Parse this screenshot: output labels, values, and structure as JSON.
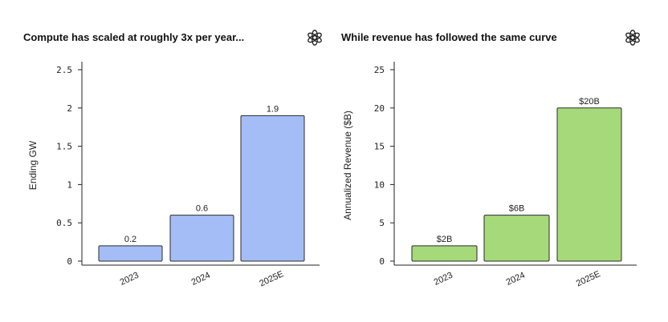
{
  "colors": {
    "compute": "#a4bdf7",
    "revenue": "#a6d97a",
    "stroke": "#2b2b2b"
  },
  "brand_icon": "openai-logo-icon",
  "chart_data": [
    {
      "type": "bar",
      "title": "Compute has scaled at roughly 3x per year...",
      "ylabel": "Ending GW",
      "xlabel": "",
      "categories": [
        "2023",
        "2024",
        "2025E"
      ],
      "values": [
        0.2,
        0.6,
        1.9
      ],
      "data_labels": [
        "0.2",
        "0.6",
        "1.9"
      ],
      "ylim": [
        0,
        2.5
      ],
      "yticks": [
        0,
        0.5,
        1,
        1.5,
        2,
        2.5
      ],
      "ytick_labels": [
        "0",
        "0.5",
        "1",
        "1.5",
        "2",
        "2.5"
      ],
      "grid": false,
      "color": "#a4bdf7"
    },
    {
      "type": "bar",
      "title": "While revenue has followed the same curve",
      "ylabel": "Annualized Revenue ($B)",
      "xlabel": "",
      "categories": [
        "2023",
        "2024",
        "2025E"
      ],
      "values": [
        2,
        6,
        20
      ],
      "data_labels": [
        "$2B",
        "$6B",
        "$20B"
      ],
      "ylim": [
        0,
        25
      ],
      "yticks": [
        0,
        5,
        10,
        15,
        20,
        25
      ],
      "ytick_labels": [
        "0",
        "5",
        "10",
        "15",
        "20",
        "25"
      ],
      "grid": false,
      "color": "#a6d97a"
    }
  ]
}
